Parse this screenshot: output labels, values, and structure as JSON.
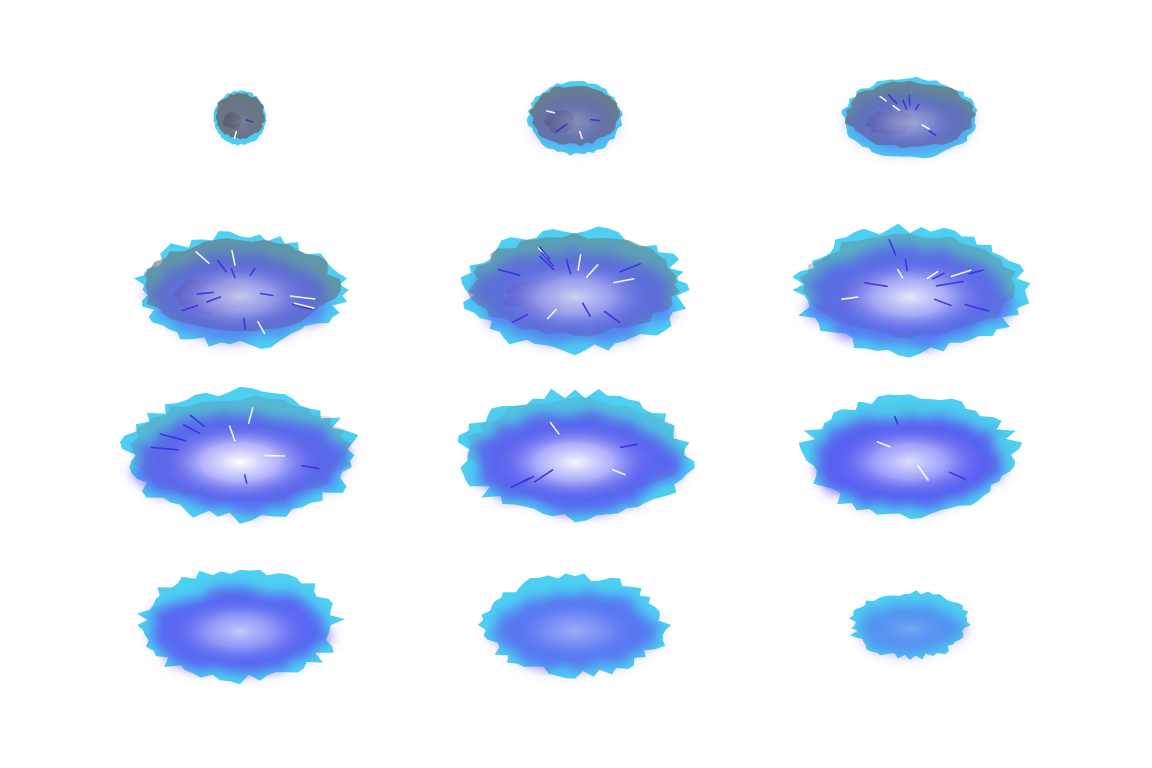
{
  "sprite_sheet": {
    "columns": 3,
    "rows": 4,
    "colors": {
      "background": "#ffffff",
      "rock": "#6e7276",
      "rock_dark": "#4f5357",
      "edge_cyan": "#2ec8f0",
      "glow_blue": "#5a50f0",
      "core_white": "#ffffff",
      "streak": "#3a2fd8"
    },
    "frames": [
      {
        "id": 1,
        "rock": 0.95,
        "glow": 0.1,
        "core": 0.05,
        "size": 0.42,
        "sparks": 2
      },
      {
        "id": 2,
        "rock": 0.85,
        "glow": 0.35,
        "core": 0.15,
        "size": 0.62,
        "sparks": 5
      },
      {
        "id": 3,
        "rock": 0.75,
        "glow": 0.5,
        "core": 0.3,
        "size": 0.76,
        "sparks": 8
      },
      {
        "id": 4,
        "rock": 0.6,
        "glow": 0.65,
        "core": 0.55,
        "size": 0.9,
        "sparks": 14
      },
      {
        "id": 5,
        "rock": 0.5,
        "glow": 0.7,
        "core": 0.6,
        "size": 0.97,
        "sparks": 14
      },
      {
        "id": 6,
        "rock": 0.35,
        "glow": 0.8,
        "core": 0.75,
        "size": 1.0,
        "sparks": 12
      },
      {
        "id": 7,
        "rock": 0.25,
        "glow": 0.9,
        "core": 0.9,
        "size": 1.02,
        "sparks": 9
      },
      {
        "id": 8,
        "rock": 0.15,
        "glow": 0.95,
        "core": 0.85,
        "size": 1.0,
        "sparks": 6
      },
      {
        "id": 9,
        "rock": 0.05,
        "glow": 1.0,
        "core": 0.7,
        "size": 0.95,
        "sparks": 4
      },
      {
        "id": 10,
        "rock": 0.0,
        "glow": 0.95,
        "core": 0.55,
        "size": 0.88,
        "sparks": 0
      },
      {
        "id": 11,
        "rock": 0.0,
        "glow": 0.8,
        "core": 0.3,
        "size": 0.8,
        "sparks": 0
      },
      {
        "id": 12,
        "rock": 0.0,
        "glow": 0.55,
        "core": 0.1,
        "size": 0.52,
        "sparks": 0
      }
    ]
  }
}
